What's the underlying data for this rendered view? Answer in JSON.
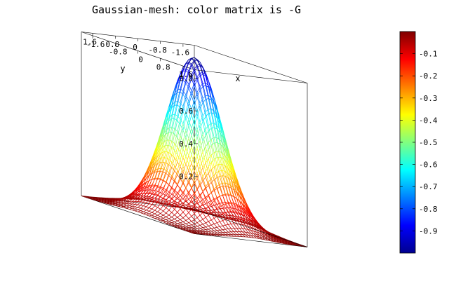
{
  "chart_data": {
    "type": "mesh",
    "title": "Gaussian-mesh: color matrix is -G",
    "function": "z = exp(-(x^2 + y^2))",
    "xlabel": "x",
    "ylabel": "y",
    "zlabel": "",
    "xlim": [
      -2,
      2
    ],
    "ylim": [
      -2,
      2
    ],
    "zlim": [
      0,
      1
    ],
    "x_ticks": [
      "-1.6",
      "-0.8",
      "0",
      "0.8",
      "1.6"
    ],
    "y_ticks": [
      "-1.6",
      "-0.8",
      "0",
      "0.8",
      "1.6"
    ],
    "z_ticks": [
      "0.2",
      "0.4",
      "0.6",
      "0.8"
    ],
    "mesh_points": 41,
    "colormap": "jet",
    "colorbar": {
      "clim": [
        -1,
        0
      ],
      "ticks": [
        "-0.1",
        "-0.2",
        "-0.3",
        "-0.4",
        "-0.5",
        "-0.6",
        "-0.7",
        "-0.8",
        "-0.9"
      ],
      "placement": "right"
    }
  }
}
